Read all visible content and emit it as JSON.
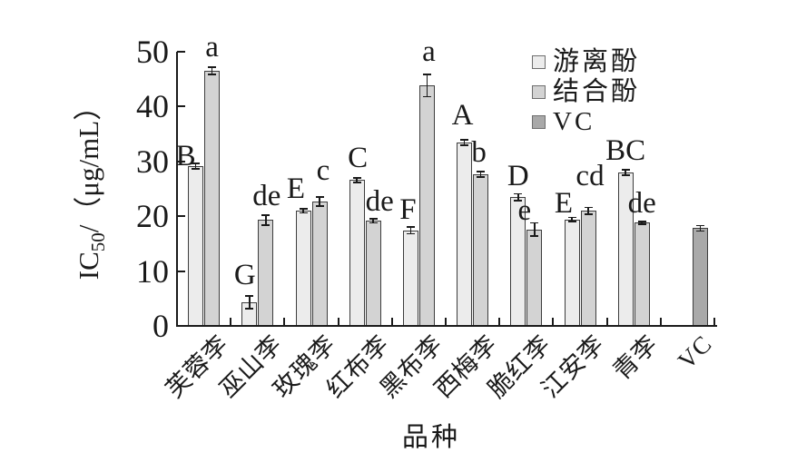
{
  "chart_data": {
    "type": "bar",
    "title": "",
    "xlabel": "品种",
    "ylabel": {
      "prefix": "IC",
      "sub": "50",
      "suffix": "/（μg/mL）"
    },
    "ylim": [
      0,
      50
    ],
    "yticks": [
      0,
      10,
      20,
      30,
      40,
      50
    ],
    "grid": false,
    "legend_position": "top-right-inside",
    "categories": [
      "芙蓉李",
      "巫山李",
      "玫瑰李",
      "红布李",
      "黑布李",
      "西梅李",
      "脆红李",
      "江安李",
      "青李",
      "VC"
    ],
    "series": [
      {
        "name": "游离酚",
        "color": "#ececec",
        "values": [
          29.2,
          4.3,
          21.0,
          26.6,
          17.4,
          33.4,
          23.5,
          19.4,
          28.0,
          null
        ],
        "errors": [
          0.5,
          1.2,
          0.4,
          0.4,
          0.6,
          0.5,
          0.6,
          0.4,
          0.5,
          null
        ],
        "letters": [
          "B",
          "G",
          "E",
          "C",
          "F",
          "A",
          "D",
          "E",
          "BC",
          null
        ]
      },
      {
        "name": "结合酚",
        "color": "#d3d3d3",
        "values": [
          46.5,
          19.3,
          22.7,
          19.2,
          43.8,
          27.7,
          17.6,
          21.0,
          18.8,
          null
        ],
        "errors": [
          0.7,
          0.9,
          0.8,
          0.4,
          2.0,
          0.5,
          1.2,
          0.6,
          0.3,
          null
        ],
        "letters": [
          "a",
          "de",
          "c",
          "de",
          "a",
          "b",
          "e",
          "cd",
          "de",
          null
        ]
      },
      {
        "name": "VC",
        "color": "#a9a9a9",
        "values": [
          null,
          null,
          null,
          null,
          null,
          null,
          null,
          null,
          null,
          17.8
        ],
        "errors": [
          null,
          null,
          null,
          null,
          null,
          null,
          null,
          null,
          null,
          0.5
        ],
        "letters": [
          null,
          null,
          null,
          null,
          null,
          null,
          null,
          null,
          null,
          ""
        ]
      }
    ]
  }
}
